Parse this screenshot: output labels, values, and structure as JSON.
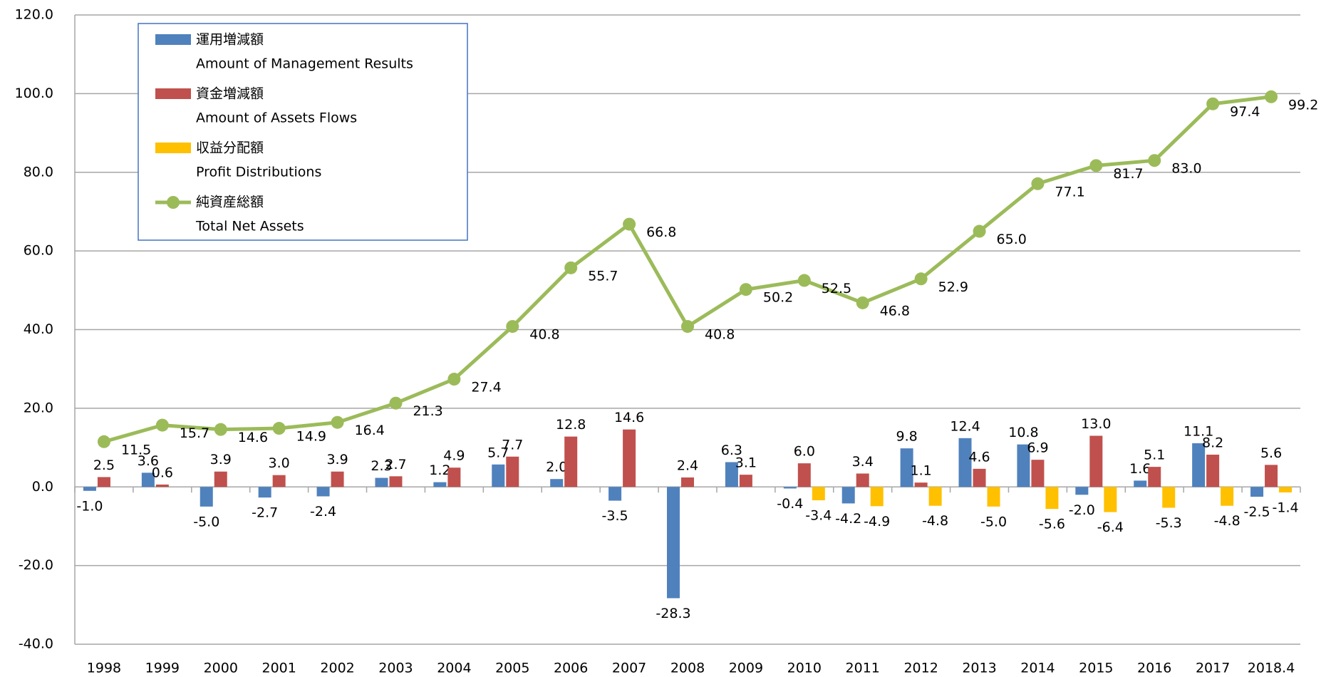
{
  "chart_data": {
    "type": "bar_line",
    "categories": [
      "1998",
      "1999",
      "2000",
      "2001",
      "2002",
      "2003",
      "2004",
      "2005",
      "2006",
      "2007",
      "2008",
      "2009",
      "2010",
      "2011",
      "2012",
      "2013",
      "2014",
      "2015",
      "2016",
      "2017",
      "2018.4"
    ],
    "series": [
      {
        "name": "運用増減額",
        "name_en": "Amount of Management Results",
        "type": "bar",
        "color": "#4f81bd",
        "values": [
          -1.0,
          3.6,
          -5.0,
          -2.7,
          -2.4,
          2.3,
          1.2,
          5.7,
          2.0,
          -3.5,
          -28.3,
          6.3,
          -0.4,
          -4.2,
          9.8,
          12.4,
          10.8,
          -2.0,
          1.6,
          11.1,
          -2.5
        ],
        "value_labels": [
          "-1.0",
          "3.6",
          "-5.0",
          "-2.7",
          "-2.4",
          "2.3",
          "1.2",
          "5.7",
          "2.0",
          "-3.5",
          "-28.3",
          "6.3",
          "-0.4",
          "-4.2",
          "9.8",
          "12.4",
          "10.8",
          "-2.0",
          "1.6",
          "11.1",
          "-2.5"
        ]
      },
      {
        "name": "資金増減額",
        "name_en": "Amount of Assets Flows",
        "type": "bar",
        "color": "#c0504d",
        "values": [
          2.5,
          0.6,
          3.9,
          3.0,
          3.9,
          2.7,
          4.9,
          7.7,
          12.8,
          14.6,
          2.4,
          3.1,
          6.0,
          3.4,
          1.1,
          4.6,
          6.9,
          13.0,
          5.1,
          8.2,
          5.6
        ],
        "value_labels": [
          "2.5",
          "0.6",
          "3.9",
          "3.0",
          "3.9",
          "2.7",
          "4.9",
          "7.7",
          "12.8",
          "14.6",
          "2.4",
          "3.1",
          "6.0",
          "3.4",
          "1.1",
          "4.6",
          "6.9",
          "13.0",
          "5.1",
          "8.2",
          "5.6"
        ]
      },
      {
        "name": "収益分配額",
        "name_en": "Profit Distributions",
        "type": "bar",
        "color": "#ffc000",
        "values": [
          null,
          null,
          null,
          null,
          null,
          null,
          null,
          null,
          null,
          null,
          null,
          null,
          -3.4,
          -4.9,
          -4.8,
          -5.0,
          -5.6,
          -6.4,
          -5.3,
          -4.8,
          -1.4
        ],
        "value_labels": [
          null,
          null,
          null,
          null,
          null,
          null,
          null,
          null,
          null,
          null,
          null,
          null,
          "-3.4",
          "-4.9",
          "-4.8",
          "-5.0",
          "-5.6",
          "-6.4",
          "-5.3",
          "-4.8",
          "-1.4"
        ]
      },
      {
        "name": "純資産総額",
        "name_en": "Total Net Assets",
        "type": "line",
        "color": "#9bbb59",
        "values": [
          11.5,
          15.7,
          14.6,
          14.9,
          16.4,
          21.3,
          27.4,
          40.8,
          55.7,
          66.8,
          40.8,
          50.2,
          52.5,
          46.8,
          52.9,
          65.0,
          77.1,
          81.7,
          83.0,
          97.4,
          99.2
        ],
        "value_labels": [
          "11.5",
          "15.7",
          "14.6",
          "14.9",
          "16.4",
          "21.3",
          "27.4",
          "40.8",
          "55.7",
          "66.8",
          "40.8",
          "50.2",
          "52.5",
          "46.8",
          "52.9",
          "65.0",
          "77.1",
          "81.7",
          "83.0",
          "97.4",
          "99.2"
        ]
      }
    ],
    "ylim": [
      -40,
      120
    ],
    "yticks": [
      {
        "value": -40,
        "label": "-40.0"
      },
      {
        "value": -20,
        "label": "-20.0"
      },
      {
        "value": 0,
        "label": "0.0"
      },
      {
        "value": 20,
        "label": "20.0"
      },
      {
        "value": 40,
        "label": "40.0"
      },
      {
        "value": 60,
        "label": "60.0"
      },
      {
        "value": 80,
        "label": "80.0"
      },
      {
        "value": 100,
        "label": "100.0"
      },
      {
        "value": 120,
        "label": "120.0"
      }
    ],
    "grid": true,
    "legend": "upper left"
  }
}
